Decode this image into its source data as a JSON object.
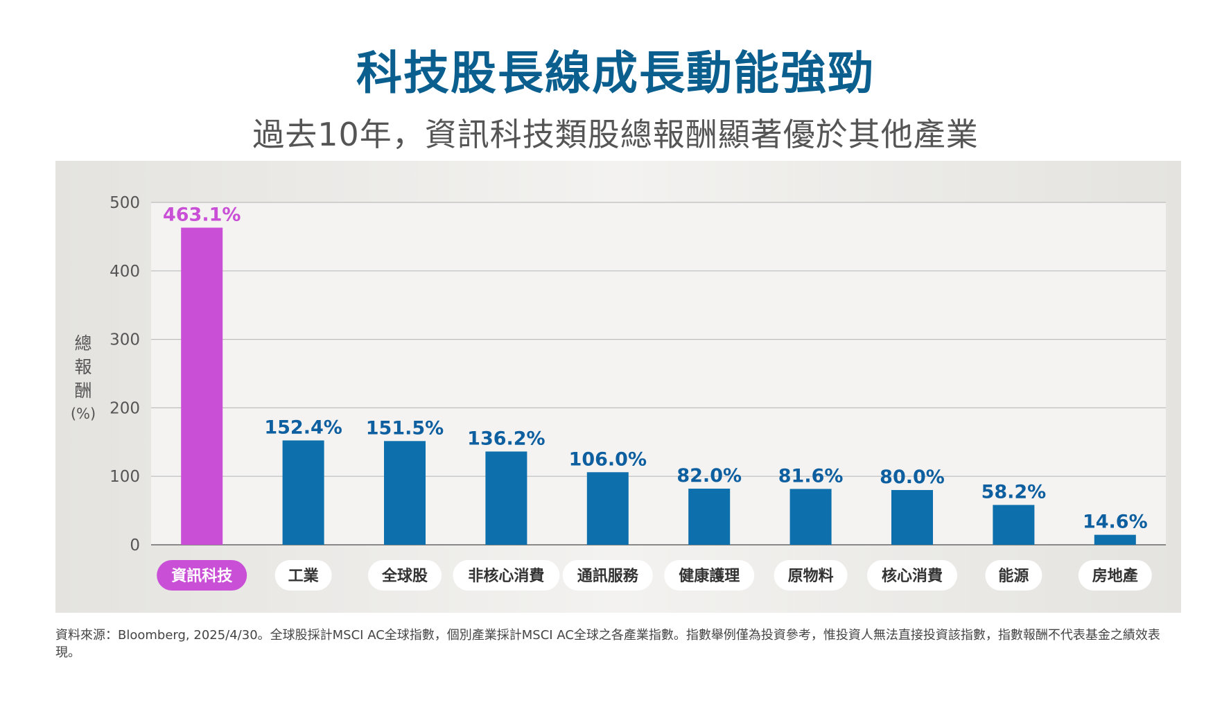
{
  "header": {
    "title": "科技股長線成長動能強勁",
    "subtitle": "過去10年，資訊科技類股總報酬顯著優於其他產業"
  },
  "chart_data": {
    "type": "bar",
    "ylabel": "總報酬",
    "yunit": "(%)",
    "ylim": [
      0,
      500
    ],
    "yticks": [
      0,
      100,
      200,
      300,
      400,
      500
    ],
    "grid": true,
    "categories": [
      "資訊科技",
      "工業",
      "全球股",
      "非核心消費",
      "通訊服務",
      "健康護理",
      "原物料",
      "核心消費",
      "能源",
      "房地產"
    ],
    "values": [
      463.1,
      152.4,
      151.5,
      136.2,
      106.0,
      82.0,
      81.6,
      80.0,
      58.2,
      14.6
    ],
    "value_labels": [
      "463.1%",
      "152.4%",
      "151.5%",
      "136.2%",
      "106.0%",
      "82.0%",
      "81.6%",
      "80.0%",
      "58.2%",
      "14.6%"
    ],
    "highlight_index": 0,
    "colors": {
      "highlight": "#c94fd6",
      "bar": "#0d6fab",
      "label": "#0d5fa0",
      "highlight_label": "#c94fd6"
    }
  },
  "footnote": "資料來源：Bloomberg, 2025/4/30。全球股採計MSCI AC全球指數，個別產業採計MSCI AC全球之各產業指數。指數舉例僅為投資參考，惟投資人無法直接投資該指數，指數報酬不代表基金之績效表現。"
}
